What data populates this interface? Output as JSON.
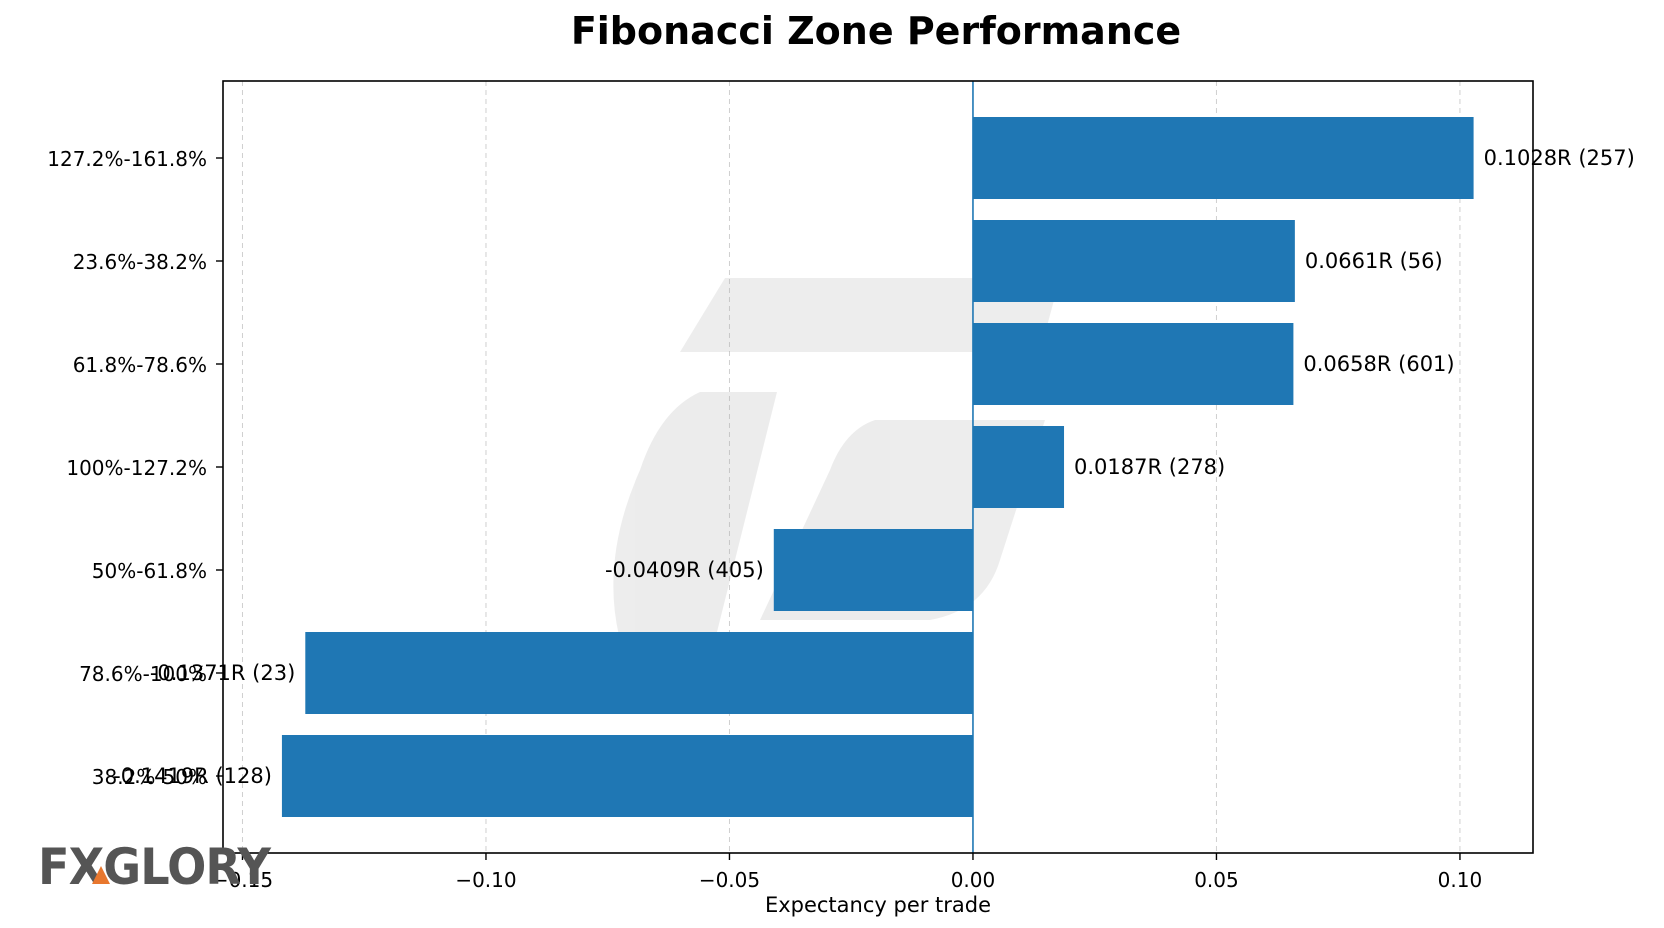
{
  "chart_data": {
    "type": "bar",
    "orientation": "horizontal",
    "title": "Fibonacci Zone Performance",
    "xlabel": "Expectancy per trade",
    "ylabel": "",
    "xlim": [
      -0.154,
      0.115
    ],
    "xticks": [
      -0.15,
      -0.1,
      -0.05,
      0.0,
      0.05,
      0.1
    ],
    "xtick_labels": [
      "−0.15",
      "−0.10",
      "−0.05",
      "0.00",
      "0.05",
      "0.10"
    ],
    "grid": "x dashed",
    "categories": [
      "127.2%-161.8%",
      "23.6%-38.2%",
      "61.8%-78.6%",
      "100%-127.2%",
      "50%-61.8%",
      "78.6%-100%",
      "38.2%-50%"
    ],
    "values": [
      0.1028,
      0.0661,
      0.0658,
      0.0187,
      -0.0409,
      -0.1371,
      -0.1419
    ],
    "data_labels": [
      "0.1028R (257)",
      "0.0661R (56)",
      "0.0658R (601)",
      "0.0187R (278)",
      "-0.0409R (405)",
      "-0.1371R (23)",
      "-0.1419R (128)"
    ],
    "bar_color": "#1f77b4",
    "zero_line_color": "#1f77b4"
  },
  "watermark": {
    "logo_text": "FXGLORY",
    "accent_color": "#e8772e"
  }
}
